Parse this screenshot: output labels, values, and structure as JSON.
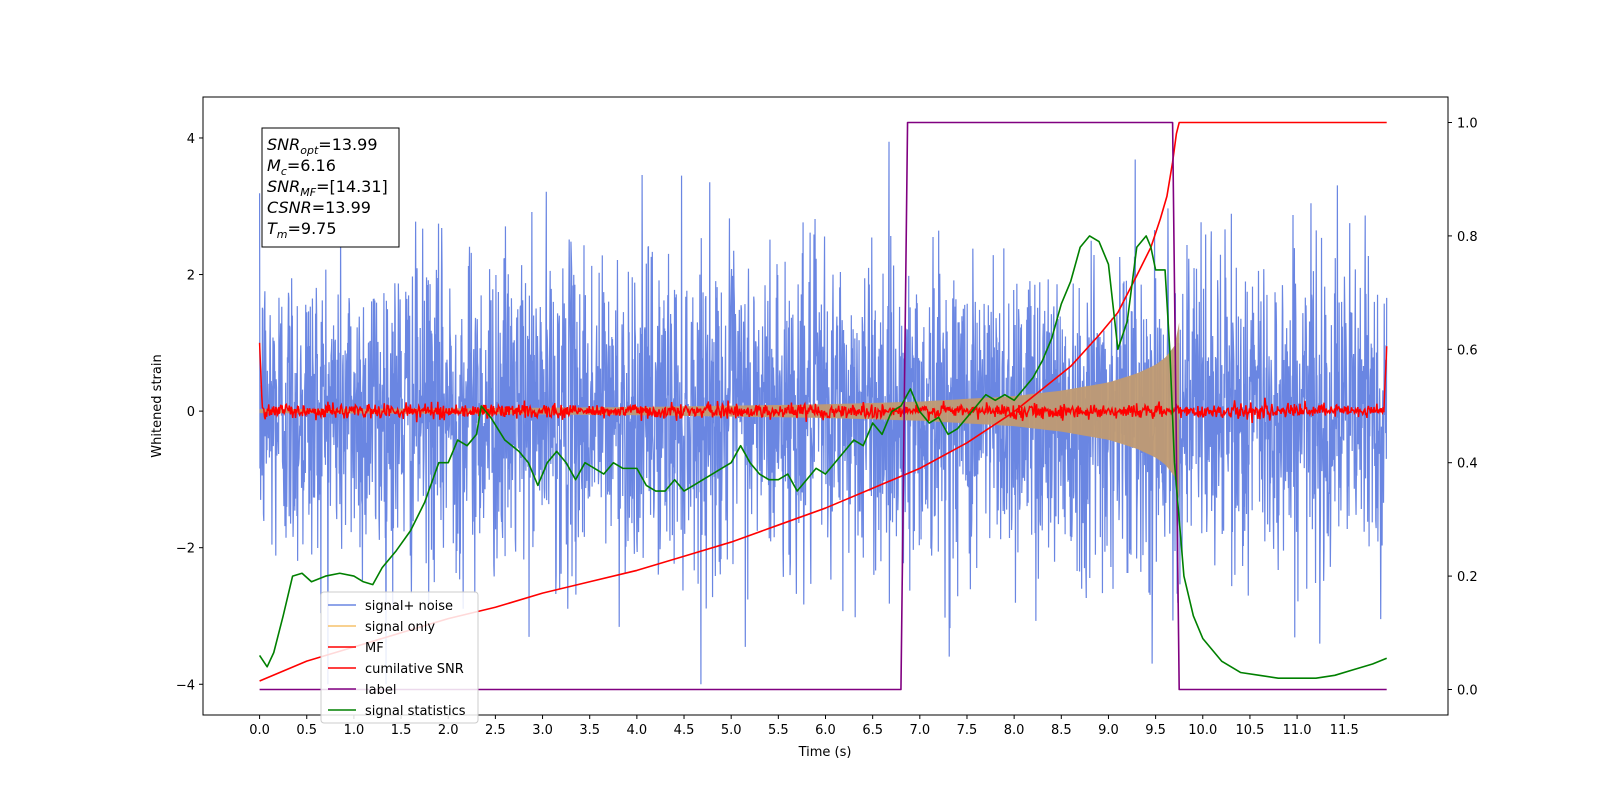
{
  "chart_data": {
    "type": "line",
    "xlabel": "Time (s)",
    "ylabel": "Whitened strain",
    "xlim": [
      -0.6,
      12.6
    ],
    "ylim": [
      -4.45,
      4.6
    ],
    "y2lim": [
      -0.045,
      1.045
    ],
    "x_ticks": [
      0.0,
      0.5,
      1.0,
      1.5,
      2.0,
      2.5,
      3.0,
      3.5,
      4.0,
      4.5,
      5.0,
      5.5,
      6.0,
      6.5,
      7.0,
      7.5,
      8.0,
      8.5,
      9.0,
      9.5,
      10.0,
      10.5,
      11.0,
      11.5
    ],
    "x_tick_labels": [
      "0.0",
      "0.5",
      "1.0",
      "1.5",
      "2.0",
      "2.5",
      "3.0",
      "3.5",
      "4.0",
      "4.5",
      "5.0",
      "5.5",
      "6.0",
      "6.5",
      "7.0",
      "7.5",
      "8.0",
      "8.5",
      "9.0",
      "9.5",
      "10.0",
      "10.5",
      "11.0",
      "11.5"
    ],
    "y_ticks": [
      -4,
      -2,
      0,
      2,
      4
    ],
    "y_tick_labels": [
      "−4",
      "−2",
      "0",
      "2",
      "4"
    ],
    "y2_ticks": [
      0.0,
      0.2,
      0.4,
      0.6,
      0.8,
      1.0
    ],
    "y2_tick_labels": [
      "0.0",
      "0.2",
      "0.4",
      "0.6",
      "0.8",
      "1.0"
    ],
    "legend_position": "lower-left",
    "annotation": [
      {
        "base": "SNR",
        "sub": "opt",
        "value": "=13.99"
      },
      {
        "base": "M",
        "sub": "c",
        "value": "=6.16"
      },
      {
        "base": "SNR",
        "sub": "MF",
        "value": "=[14.31]"
      },
      {
        "base": "CSNR",
        "sub": "",
        "value": "=13.99"
      },
      {
        "base": "T",
        "sub": "m",
        "value": "=9.75"
      }
    ],
    "series": [
      {
        "name": "signal+ noise",
        "axis": "left",
        "color": "#6a86e2",
        "kind": "noise",
        "x_range": [
          0.0,
          11.95
        ],
        "amplitude_range": [
          -4.0,
          4.17
        ]
      },
      {
        "name": "signal only",
        "axis": "left",
        "color": "#f5c26b",
        "fill_color": "#c09a72",
        "kind": "chirp",
        "x_range": [
          0.0,
          9.75
        ],
        "envelope": {
          "x": [
            0.0,
            2.0,
            4.0,
            6.0,
            7.0,
            8.0,
            8.5,
            9.0,
            9.3,
            9.5,
            9.6,
            9.7,
            9.75
          ],
          "y": [
            0.03,
            0.04,
            0.06,
            0.1,
            0.14,
            0.22,
            0.3,
            0.42,
            0.55,
            0.68,
            0.78,
            0.95,
            1.3
          ]
        }
      },
      {
        "name": "MF",
        "axis": "left",
        "color": "#ff0000",
        "kind": "mf",
        "x_range": [
          0.0,
          11.95
        ],
        "start_value": 1.0,
        "end_value": 0.95,
        "noise_amplitude": 0.12
      },
      {
        "name": "cumilative SNR",
        "axis": "right",
        "color": "#ff0000",
        "x": [
          0.0,
          0.5,
          1.0,
          1.5,
          2.0,
          2.5,
          3.0,
          3.5,
          4.0,
          4.5,
          5.0,
          5.5,
          6.0,
          6.5,
          7.0,
          7.5,
          8.0,
          8.3,
          8.6,
          8.9,
          9.1,
          9.3,
          9.45,
          9.55,
          9.62,
          9.68,
          9.72,
          9.75,
          11.95
        ],
        "values": [
          0.015,
          0.05,
          0.075,
          0.1,
          0.125,
          0.145,
          0.17,
          0.19,
          0.21,
          0.235,
          0.26,
          0.29,
          0.32,
          0.355,
          0.39,
          0.435,
          0.49,
          0.53,
          0.57,
          0.625,
          0.665,
          0.73,
          0.78,
          0.83,
          0.87,
          0.93,
          0.98,
          1.0,
          1.0
        ]
      },
      {
        "name": "label",
        "axis": "right",
        "color": "#800080",
        "x": [
          0.0,
          6.8,
          6.87,
          9.68,
          9.75,
          11.95
        ],
        "values": [
          0.0,
          0.0,
          1.0,
          1.0,
          0.0,
          0.0
        ]
      },
      {
        "name": "signal statistics",
        "axis": "right",
        "color": "#008000",
        "x": [
          0.0,
          0.08,
          0.15,
          0.25,
          0.35,
          0.45,
          0.55,
          0.7,
          0.85,
          1.0,
          1.1,
          1.2,
          1.3,
          1.45,
          1.6,
          1.75,
          1.9,
          2.0,
          2.1,
          2.2,
          2.3,
          2.35,
          2.45,
          2.6,
          2.75,
          2.85,
          2.95,
          3.05,
          3.15,
          3.25,
          3.35,
          3.45,
          3.55,
          3.65,
          3.75,
          3.85,
          4.0,
          4.1,
          4.2,
          4.3,
          4.4,
          4.5,
          4.6,
          4.7,
          4.8,
          4.9,
          5.0,
          5.1,
          5.2,
          5.3,
          5.4,
          5.5,
          5.6,
          5.7,
          5.8,
          5.9,
          6.0,
          6.1,
          6.2,
          6.3,
          6.4,
          6.5,
          6.6,
          6.7,
          6.8,
          6.9,
          7.0,
          7.1,
          7.2,
          7.3,
          7.4,
          7.5,
          7.6,
          7.7,
          7.8,
          7.9,
          8.0,
          8.1,
          8.2,
          8.3,
          8.4,
          8.5,
          8.6,
          8.7,
          8.8,
          8.9,
          9.0,
          9.1,
          9.2,
          9.3,
          9.4,
          9.45,
          9.5,
          9.6,
          9.65,
          9.7,
          9.75,
          9.8,
          9.9,
          10.0,
          10.2,
          10.4,
          10.6,
          10.8,
          11.0,
          11.2,
          11.4,
          11.6,
          11.8,
          11.95
        ],
        "values": [
          0.06,
          0.04,
          0.065,
          0.13,
          0.2,
          0.205,
          0.19,
          0.2,
          0.205,
          0.2,
          0.19,
          0.185,
          0.215,
          0.245,
          0.28,
          0.33,
          0.4,
          0.4,
          0.44,
          0.43,
          0.45,
          0.5,
          0.48,
          0.44,
          0.42,
          0.4,
          0.36,
          0.4,
          0.42,
          0.4,
          0.37,
          0.4,
          0.39,
          0.38,
          0.4,
          0.39,
          0.39,
          0.36,
          0.35,
          0.35,
          0.37,
          0.35,
          0.36,
          0.37,
          0.38,
          0.39,
          0.4,
          0.43,
          0.4,
          0.38,
          0.37,
          0.37,
          0.38,
          0.35,
          0.37,
          0.39,
          0.38,
          0.4,
          0.42,
          0.44,
          0.43,
          0.47,
          0.45,
          0.49,
          0.5,
          0.53,
          0.49,
          0.47,
          0.48,
          0.45,
          0.46,
          0.48,
          0.5,
          0.52,
          0.51,
          0.52,
          0.51,
          0.53,
          0.55,
          0.58,
          0.62,
          0.68,
          0.72,
          0.78,
          0.8,
          0.79,
          0.75,
          0.6,
          0.65,
          0.78,
          0.8,
          0.78,
          0.74,
          0.74,
          0.6,
          0.4,
          0.3,
          0.2,
          0.13,
          0.09,
          0.05,
          0.03,
          0.025,
          0.02,
          0.02,
          0.02,
          0.025,
          0.035,
          0.045,
          0.055
        ]
      }
    ]
  }
}
